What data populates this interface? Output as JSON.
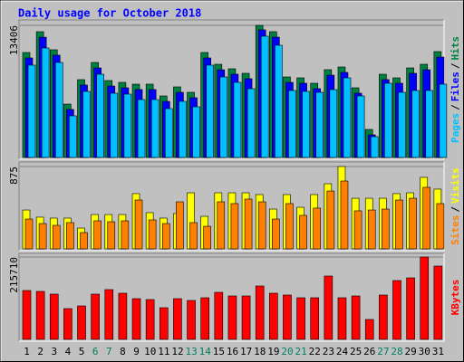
{
  "chart_data": [
    {
      "type": "bar",
      "title": "Daily usage for October 2018",
      "categories": [
        "1",
        "2",
        "3",
        "4",
        "5",
        "6",
        "7",
        "8",
        "9",
        "10",
        "11",
        "12",
        "13",
        "14",
        "15",
        "16",
        "17",
        "18",
        "19",
        "20",
        "21",
        "22",
        "23",
        "24",
        "25",
        "26",
        "27",
        "28",
        "29",
        "30",
        "31"
      ],
      "category_color": "#000000",
      "weekend_color": "#008060",
      "weekend_days": [
        "6",
        "7",
        "13",
        "14",
        "20",
        "21",
        "27",
        "28"
      ],
      "legend_separator": "/",
      "series": [
        {
          "name": "Hits",
          "color": "#008040",
          "values": [
            10651,
            12763,
            10927,
            5417,
            7897,
            9641,
            7805,
            7621,
            7437,
            7437,
            6244,
            7162,
            6611,
            10651,
            9457,
            8998,
            8539,
            13406,
            12763,
            8172,
            8080,
            7529,
            8907,
            9182,
            7070,
            2846,
            8447,
            8080,
            9090,
            9457,
            10743
          ]
        },
        {
          "name": "Files",
          "color": "#0000ff",
          "values": [
            10100,
            12200,
            10380,
            4870,
            7350,
            9090,
            7250,
            7070,
            6890,
            6890,
            5690,
            6610,
            6060,
            10100,
            8900,
            8450,
            7990,
            12950,
            12210,
            7620,
            7530,
            6980,
            8350,
            8630,
            6520,
            2300,
            7900,
            7530,
            8540,
            8900,
            10190
          ]
        },
        {
          "name": "Pages",
          "color": "#00c0ff",
          "values": [
            9366,
            11110,
            9641,
            4224,
            6703,
            8447,
            6519,
            6427,
            5876,
            5876,
            4958,
            5693,
            5142,
            9366,
            8172,
            7621,
            6978,
            12304,
            11386,
            6795,
            6703,
            6611,
            6887,
            8080,
            6244,
            2112,
            7529,
            6611,
            6795,
            6795,
            7437
          ]
        }
      ],
      "ylim": [
        0,
        13406
      ],
      "yticks": [
        13406
      ],
      "grid": true
    },
    {
      "type": "bar",
      "series": [
        {
          "name": "Visits",
          "color": "#ffff00",
          "values": [
            413,
            337,
            327,
            327,
            221,
            365,
            365,
            365,
            587,
            385,
            327,
            375,
            596,
            346,
            596,
            596,
            596,
            577,
            423,
            577,
            442,
            577,
            692,
            875,
            538,
            538,
            538,
            587,
            596,
            760,
            635
          ]
        },
        {
          "name": "Sites",
          "color": "#ff8000",
          "values": [
            317,
            269,
            250,
            279,
            173,
            298,
            288,
            298,
            519,
            308,
            269,
            500,
            279,
            240,
            500,
            481,
            529,
            500,
            317,
            481,
            356,
            433,
            615,
            721,
            404,
            413,
            423,
            519,
            538,
            654,
            481
          ]
        }
      ],
      "ylim": [
        0,
        875
      ],
      "yticks": [
        875
      ],
      "grid": true
    },
    {
      "type": "bar",
      "series": [
        {
          "name": "KBytes",
          "color": "#ff0000",
          "values": [
            128000,
            125630,
            118520,
            80590,
            87700,
            118520,
            130370,
            120890,
            106670,
            104300,
            82960,
            106670,
            101930,
            109040,
            123260,
            113780,
            113780,
            139850,
            120890,
            116150,
            109040,
            109040,
            165930,
            109040,
            113780,
            52150,
            116150,
            154080,
            161190,
            215710,
            192000
          ]
        }
      ],
      "ylim": [
        0,
        215710
      ],
      "yticks": [
        215710
      ],
      "grid": true
    }
  ]
}
